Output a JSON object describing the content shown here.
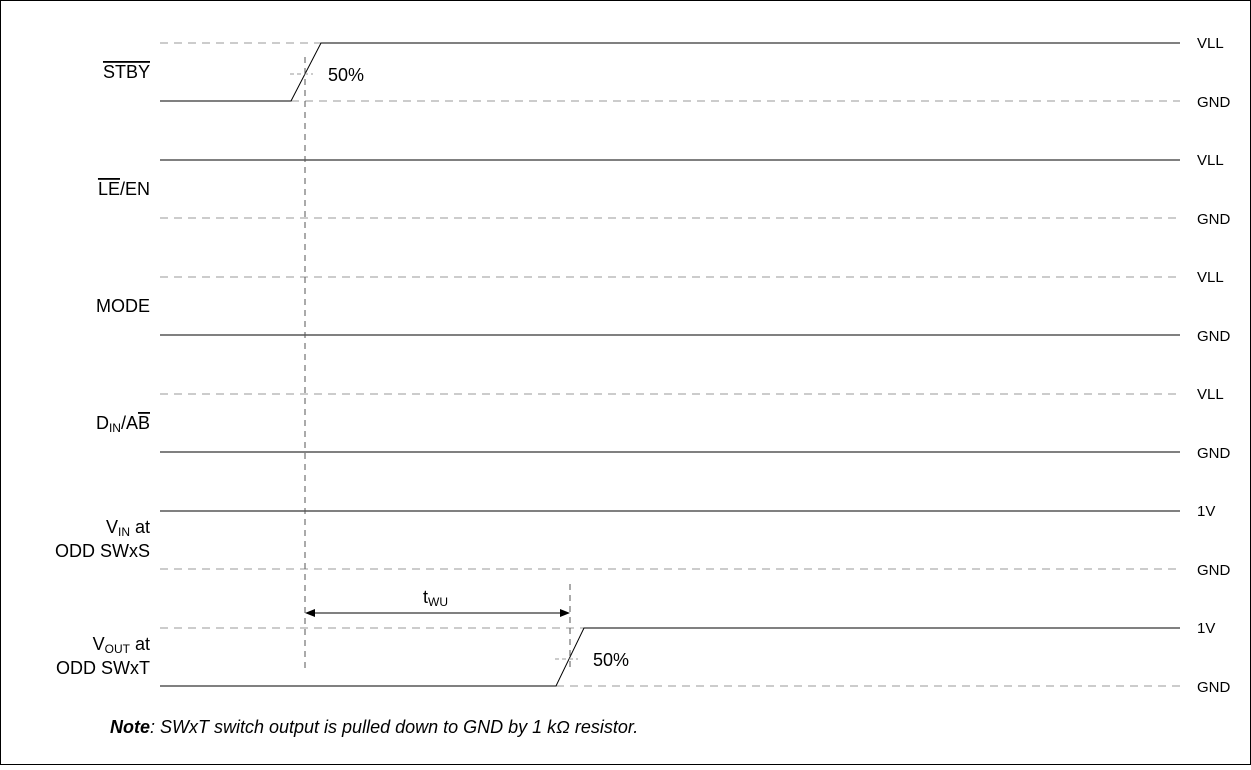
{
  "signals": [
    {
      "id": "stby",
      "name_parts": [
        {
          "text": "STBY",
          "over": true
        }
      ],
      "top_label": "VLL",
      "bottom_label": "GND",
      "state": "rising",
      "marker": "50%"
    },
    {
      "id": "le-en",
      "name_parts": [
        {
          "text": "LE",
          "over": true
        },
        {
          "text": "/EN"
        }
      ],
      "top_label": "VLL",
      "bottom_label": "GND",
      "state": "high"
    },
    {
      "id": "mode",
      "name_parts": [
        {
          "text": "MODE"
        }
      ],
      "top_label": "VLL",
      "bottom_label": "GND",
      "state": "low"
    },
    {
      "id": "din-ab",
      "name_parts": [
        {
          "text": "D"
        },
        {
          "text": "IN",
          "sub": true
        },
        {
          "text": "/A"
        },
        {
          "text": "B",
          "over": true
        }
      ],
      "top_label": "VLL",
      "bottom_label": "GND",
      "state": "low"
    },
    {
      "id": "vin",
      "name_parts": [
        {
          "text": "V"
        },
        {
          "text": "IN",
          "sub": true
        },
        {
          "text": " at"
        }
      ],
      "name_line2": "ODD SWxS",
      "top_label": "1V",
      "bottom_label": "GND",
      "state": "high"
    },
    {
      "id": "vout",
      "name_parts": [
        {
          "text": "V"
        },
        {
          "text": "OUT",
          "sub": true
        },
        {
          "text": " at"
        }
      ],
      "name_line2": "ODD SWxT",
      "top_label": "1V",
      "bottom_label": "GND",
      "state": "rising",
      "marker": "50%"
    }
  ],
  "timing": {
    "label_main": "t",
    "label_sub": "WU"
  },
  "note": {
    "bold": "Note",
    "text": ": SWxT switch output is pulled down to GND by 1 kΩ resistor."
  }
}
